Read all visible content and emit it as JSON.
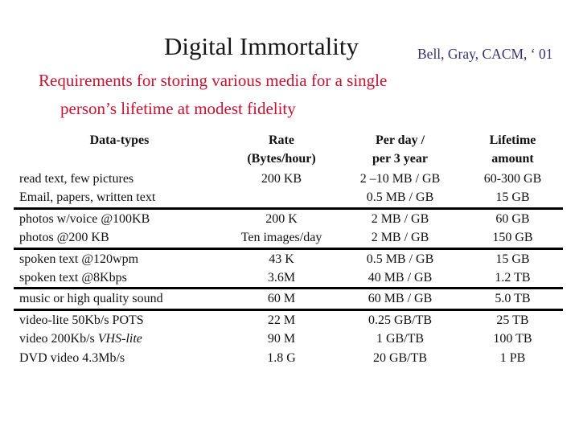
{
  "slide": {
    "title": "Digital Immortality",
    "attribution": "Bell, Gray, CACM, ‘ 01",
    "subtitle_line1": "Requirements for storing various media for a single",
    "subtitle_line2": "person’s lifetime at modest fidelity"
  },
  "colors": {
    "title": "#161616",
    "attribution": "#333370",
    "subtitle": "#c41230",
    "table_text": "#111111",
    "divider": "#000000",
    "background": "#ffffff"
  },
  "table": {
    "headers": [
      [
        "Data-types",
        ""
      ],
      [
        "Rate",
        "(Bytes/hour)"
      ],
      [
        "Per day /",
        "per 3 year"
      ],
      [
        "Lifetime",
        "amount"
      ]
    ],
    "groups": [
      {
        "rows": [
          {
            "type": "read text, few pictures",
            "rate": "200 KB",
            "per_day": "2 –10 MB / GB",
            "lifetime": "60-300 GB"
          },
          {
            "type": "Email, papers, written text",
            "rate": "",
            "per_day": "0.5 MB / GB",
            "lifetime": "15 GB"
          }
        ]
      },
      {
        "rows": [
          {
            "type": "photos w/voice @100KB",
            "rate": "200 K",
            "per_day": "2 MB / GB",
            "lifetime": "60 GB"
          },
          {
            "type": "photos @200 KB",
            "rate": "Ten images/day",
            "per_day": "2 MB / GB",
            "lifetime": "150 GB"
          }
        ]
      },
      {
        "rows": [
          {
            "type": "spoken text @120wpm",
            "rate": "43 K",
            "per_day": "0.5 MB / GB",
            "lifetime": "15 GB"
          },
          {
            "type": "spoken text @8Kbps",
            "rate": "3.6M",
            "per_day": "40 MB / GB",
            "lifetime": "1.2 TB"
          }
        ]
      },
      {
        "rows": [
          {
            "type": "music or high quality sound",
            "rate": "60 M",
            "per_day": "60 MB / GB",
            "lifetime": "5.0 TB"
          }
        ]
      },
      {
        "rows": [
          {
            "type": "video-lite 50Kb/s POTS",
            "rate": "22 M",
            "per_day": "0.25 GB/TB",
            "lifetime": "25 TB"
          },
          {
            "type": "video 200Kb/s ",
            "type_italic": "VHS-lite",
            "rate": "90 M",
            "per_day": "1 GB/TB",
            "lifetime": "100 TB"
          },
          {
            "type": "DVD video 4.3Mb/s",
            "rate": "1.8 G",
            "per_day": "20 GB/TB",
            "lifetime": "1 PB"
          }
        ]
      }
    ]
  }
}
